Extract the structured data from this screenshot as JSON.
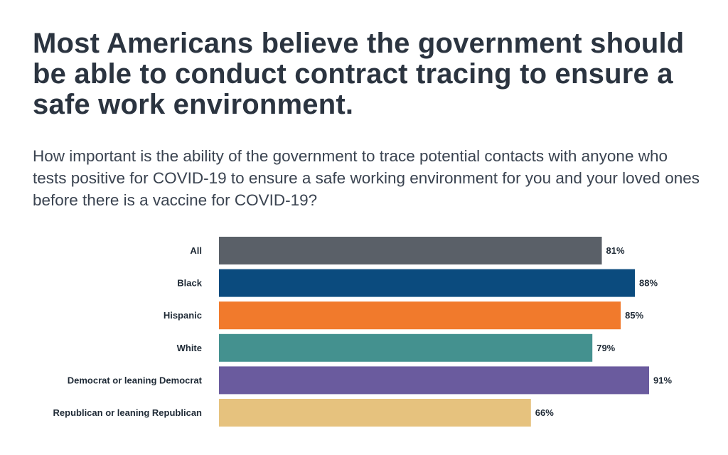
{
  "title": "Most Americans believe the government should be able to conduct contract tracing to ensure a safe work environment.",
  "subtitle": "How important is the ability of the government to trace potential contacts with anyone who tests positive for COVID-19 to ensure a safe working environment for you and your loved ones before there is a vaccine for COVID-19?",
  "chart_data": {
    "type": "bar",
    "orientation": "horizontal",
    "title": "",
    "xlabel": "",
    "ylabel": "",
    "xlim": [
      0,
      100
    ],
    "grid": false,
    "value_suffix": "%",
    "categories": [
      "All",
      "Black",
      "Hispanic",
      "White",
      "Democrat or leaning Democrat",
      "Republican or leaning Republican"
    ],
    "values": [
      81,
      88,
      85,
      79,
      91,
      66
    ],
    "value_labels": [
      "81%",
      "88%",
      "85%",
      "79%",
      "91%",
      "66%"
    ],
    "colors": [
      "#5a6068",
      "#0b4b7e",
      "#f17a2c",
      "#44918f",
      "#6a5b9e",
      "#e6c27e"
    ]
  }
}
